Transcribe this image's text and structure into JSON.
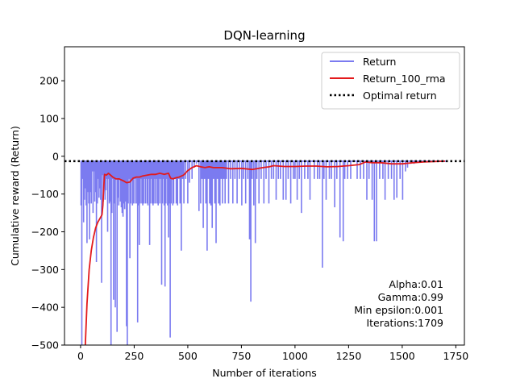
{
  "chart_data": {
    "type": "line",
    "title": "DQN-learning",
    "xlabel": "Number of iterations",
    "ylabel": "Cumulative reward (Return)",
    "xlim": [
      -75,
      1790
    ],
    "ylim": [
      -500,
      290
    ],
    "xticks": [
      0,
      250,
      500,
      750,
      1000,
      1250,
      1500,
      1750
    ],
    "yticks": [
      -500,
      -400,
      -300,
      -200,
      -100,
      0,
      100,
      200
    ],
    "grid": false,
    "legend_position": "top-right",
    "legend": [
      "Return",
      "Return_100_rma",
      "Optimal return"
    ],
    "colors": {
      "return": "#7b7bf0",
      "rma": "#e31a1c",
      "optimal": "#000000"
    },
    "series": [
      {
        "name": "Return",
        "style": "line",
        "baseline": -13,
        "spikes": [
          [
            2,
            -130
          ],
          [
            6,
            -520
          ],
          [
            10,
            -60
          ],
          [
            14,
            -175
          ],
          [
            18,
            -115
          ],
          [
            22,
            -85
          ],
          [
            26,
            -130
          ],
          [
            30,
            -230
          ],
          [
            34,
            -95
          ],
          [
            38,
            -125
          ],
          [
            42,
            -220
          ],
          [
            46,
            -95
          ],
          [
            50,
            -125
          ],
          [
            54,
            -40
          ],
          [
            58,
            -150
          ],
          [
            62,
            -40
          ],
          [
            66,
            -120
          ],
          [
            70,
            -95
          ],
          [
            74,
            -280
          ],
          [
            78,
            -125
          ],
          [
            82,
            -60
          ],
          [
            86,
            -110
          ],
          [
            90,
            -85
          ],
          [
            94,
            -115
          ],
          [
            98,
            -335
          ],
          [
            102,
            -50
          ],
          [
            106,
            -120
          ],
          [
            110,
            -60
          ],
          [
            114,
            -115
          ],
          [
            118,
            -90
          ],
          [
            122,
            -60
          ],
          [
            126,
            -200
          ],
          [
            130,
            -60
          ],
          [
            134,
            -125
          ],
          [
            138,
            -120
          ],
          [
            142,
            -520
          ],
          [
            146,
            -150
          ],
          [
            150,
            -60
          ],
          [
            154,
            -380
          ],
          [
            158,
            -125
          ],
          [
            162,
            -400
          ],
          [
            166,
            -60
          ],
          [
            170,
            -465
          ],
          [
            174,
            -110
          ],
          [
            178,
            -130
          ],
          [
            182,
            -60
          ],
          [
            186,
            -120
          ],
          [
            190,
            -135
          ],
          [
            194,
            -150
          ],
          [
            198,
            -160
          ],
          [
            202,
            -125
          ],
          [
            206,
            -140
          ],
          [
            210,
            -120
          ],
          [
            214,
            -450
          ],
          [
            218,
            -520
          ],
          [
            222,
            -125
          ],
          [
            226,
            -60
          ],
          [
            230,
            -270
          ],
          [
            234,
            -125
          ],
          [
            238,
            -60
          ],
          [
            242,
            -130
          ],
          [
            246,
            -125
          ],
          [
            250,
            -60
          ],
          [
            254,
            -125
          ],
          [
            258,
            -60
          ],
          [
            262,
            -125
          ],
          [
            266,
            -440
          ],
          [
            270,
            -130
          ],
          [
            274,
            -235
          ],
          [
            278,
            -125
          ],
          [
            282,
            -60
          ],
          [
            286,
            -125
          ],
          [
            290,
            -130
          ],
          [
            294,
            -125
          ],
          [
            298,
            -60
          ],
          [
            302,
            -125
          ],
          [
            306,
            -60
          ],
          [
            310,
            -125
          ],
          [
            314,
            -130
          ],
          [
            318,
            -60
          ],
          [
            322,
            -235
          ],
          [
            326,
            -125
          ],
          [
            330,
            -60
          ],
          [
            334,
            -125
          ],
          [
            338,
            -130
          ],
          [
            342,
            -125
          ],
          [
            346,
            -60
          ],
          [
            350,
            -125
          ],
          [
            354,
            -60
          ],
          [
            358,
            -125
          ],
          [
            362,
            -130
          ],
          [
            366,
            -60
          ],
          [
            370,
            -125
          ],
          [
            374,
            -60
          ],
          [
            378,
            -340
          ],
          [
            382,
            -125
          ],
          [
            386,
            -60
          ],
          [
            390,
            -130
          ],
          [
            394,
            -345
          ],
          [
            398,
            -125
          ],
          [
            402,
            -60
          ],
          [
            406,
            -130
          ],
          [
            410,
            -215
          ],
          [
            414,
            -125
          ],
          [
            418,
            -480
          ],
          [
            422,
            -125
          ],
          [
            426,
            -60
          ],
          [
            430,
            -130
          ],
          [
            434,
            -125
          ],
          [
            440,
            -60
          ],
          [
            446,
            -125
          ],
          [
            452,
            -130
          ],
          [
            458,
            -60
          ],
          [
            464,
            -125
          ],
          [
            470,
            -250
          ],
          [
            476,
            -60
          ],
          [
            482,
            -125
          ],
          [
            490,
            -60
          ],
          [
            500,
            -125
          ],
          [
            508,
            -70
          ],
          [
            520,
            -60
          ],
          [
            530,
            -30
          ],
          [
            540,
            -20
          ],
          [
            552,
            -145
          ],
          [
            560,
            -125
          ],
          [
            566,
            -60
          ],
          [
            572,
            -190
          ],
          [
            578,
            -60
          ],
          [
            584,
            -125
          ],
          [
            590,
            -250
          ],
          [
            596,
            -60
          ],
          [
            602,
            -125
          ],
          [
            608,
            -130
          ],
          [
            614,
            -190
          ],
          [
            620,
            -60
          ],
          [
            626,
            -125
          ],
          [
            632,
            -230
          ],
          [
            638,
            -60
          ],
          [
            644,
            -125
          ],
          [
            650,
            -130
          ],
          [
            656,
            -60
          ],
          [
            662,
            -125
          ],
          [
            668,
            -60
          ],
          [
            674,
            -125
          ],
          [
            680,
            -60
          ],
          [
            690,
            -125
          ],
          [
            700,
            -60
          ],
          [
            710,
            -125
          ],
          [
            720,
            -60
          ],
          [
            730,
            -125
          ],
          [
            740,
            -60
          ],
          [
            752,
            -130
          ],
          [
            760,
            -60
          ],
          [
            770,
            -125
          ],
          [
            780,
            -60
          ],
          [
            788,
            -220
          ],
          [
            794,
            -385
          ],
          [
            800,
            -60
          ],
          [
            808,
            -130
          ],
          [
            815,
            -230
          ],
          [
            822,
            -60
          ],
          [
            832,
            -125
          ],
          [
            842,
            -60
          ],
          [
            855,
            -125
          ],
          [
            865,
            -60
          ],
          [
            878,
            -125
          ],
          [
            890,
            -60
          ],
          [
            900,
            -60
          ],
          [
            912,
            -115
          ],
          [
            922,
            -60
          ],
          [
            932,
            -60
          ],
          [
            945,
            -115
          ],
          [
            958,
            -115
          ],
          [
            968,
            -60
          ],
          [
            980,
            -125
          ],
          [
            992,
            -60
          ],
          [
            1000,
            -60
          ],
          [
            1010,
            -115
          ],
          [
            1020,
            -60
          ],
          [
            1030,
            -150
          ],
          [
            1045,
            -60
          ],
          [
            1060,
            -60
          ],
          [
            1070,
            -115
          ],
          [
            1090,
            -60
          ],
          [
            1105,
            -60
          ],
          [
            1115,
            -60
          ],
          [
            1128,
            -295
          ],
          [
            1135,
            -60
          ],
          [
            1145,
            -115
          ],
          [
            1160,
            -60
          ],
          [
            1170,
            -60
          ],
          [
            1185,
            -135
          ],
          [
            1195,
            -60
          ],
          [
            1210,
            -215
          ],
          [
            1225,
            -225
          ],
          [
            1232,
            -60
          ],
          [
            1245,
            -60
          ],
          [
            1260,
            -60
          ],
          [
            1290,
            -60
          ],
          [
            1305,
            -60
          ],
          [
            1320,
            -60
          ],
          [
            1335,
            -115
          ],
          [
            1345,
            -60
          ],
          [
            1360,
            -115
          ],
          [
            1370,
            -225
          ],
          [
            1380,
            -225
          ],
          [
            1395,
            -60
          ],
          [
            1410,
            -60
          ],
          [
            1420,
            -115
          ],
          [
            1435,
            -60
          ],
          [
            1450,
            -60
          ],
          [
            1462,
            -115
          ],
          [
            1475,
            -110
          ],
          [
            1490,
            -60
          ],
          [
            1502,
            -115
          ],
          [
            1515,
            -40
          ],
          [
            1525,
            -30
          ],
          [
            1540,
            -20
          ],
          [
            1555,
            -20
          ],
          [
            1565,
            -15
          ]
        ]
      },
      {
        "name": "Return_100_rma",
        "style": "line",
        "x": [
          22,
          30,
          40,
          50,
          60,
          70,
          80,
          90,
          100,
          104,
          108,
          112,
          120,
          130,
          150,
          165,
          180,
          200,
          215,
          230,
          245,
          260,
          275,
          290,
          310,
          330,
          350,
          370,
          390,
          410,
          420,
          430,
          445,
          460,
          480,
          500,
          520,
          540,
          560,
          580,
          600,
          620,
          660,
          700,
          750,
          800,
          850,
          880,
          900,
          950,
          1000,
          1050,
          1100,
          1150,
          1200,
          1250,
          1300,
          1330,
          1360,
          1400,
          1450,
          1500,
          1550,
          1600,
          1650,
          1700
        ],
        "y": [
          -500,
          -390,
          -300,
          -250,
          -215,
          -190,
          -175,
          -165,
          -155,
          -130,
          -80,
          -48,
          -50,
          -45,
          -55,
          -60,
          -60,
          -65,
          -70,
          -68,
          -58,
          -55,
          -55,
          -52,
          -50,
          -48,
          -48,
          -45,
          -48,
          -45,
          -58,
          -60,
          -57,
          -55,
          -50,
          -38,
          -30,
          -25,
          -28,
          -30,
          -28,
          -30,
          -30,
          -33,
          -32,
          -35,
          -30,
          -28,
          -25,
          -27,
          -27,
          -26,
          -26,
          -28,
          -27,
          -25,
          -22,
          -15,
          -17,
          -17,
          -20,
          -20,
          -17,
          -15,
          -14,
          -13
        ]
      },
      {
        "name": "Optimal return",
        "style": "dotted",
        "value": -13
      }
    ],
    "annotations": [
      "Alpha:0.01",
      "Gamma:0.99",
      "Min epsilon:0.001",
      "Iterations:1709"
    ]
  }
}
